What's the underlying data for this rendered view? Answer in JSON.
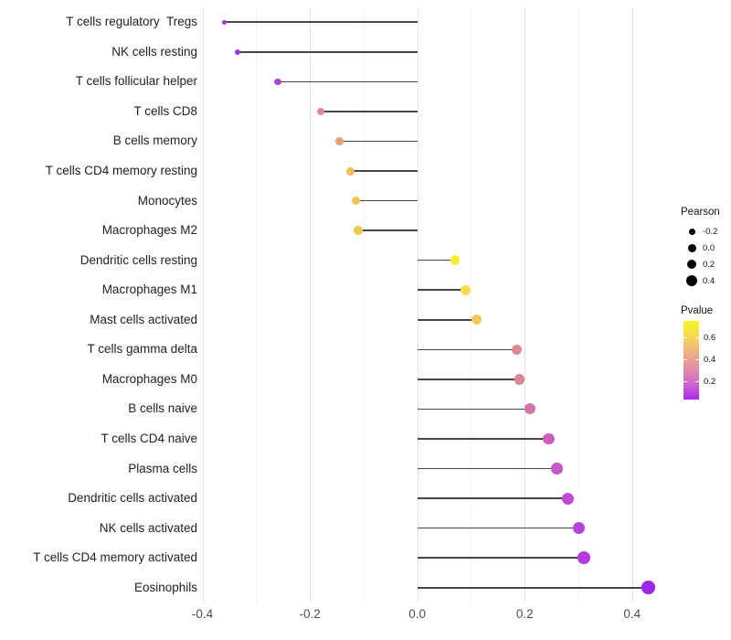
{
  "chart_data": {
    "type": "scatter",
    "subtype": "lollipop",
    "title": "",
    "xlabel": "",
    "ylabel": "",
    "grid": true,
    "xlim": [
      -0.4035,
      0.4735
    ],
    "x_major_ticks": [
      -0.4,
      -0.2,
      0.0,
      0.2,
      0.4
    ],
    "x_major_tick_labels": [
      "-0.4",
      "-0.2",
      "0.0",
      "0.2",
      "0.4"
    ],
    "x_minor_ticks": [
      -0.3,
      -0.1,
      0.1,
      0.3
    ],
    "baseline_x": 0.0,
    "points": [
      {
        "label": "T cells regulatory  Tregs",
        "pearson": -0.36,
        "pvalue": 0.1,
        "color": "#A138D9",
        "diameter": 5
      },
      {
        "label": "NK cells resting",
        "pearson": -0.335,
        "pvalue": 0.11,
        "color": "#A136DC",
        "diameter": 6
      },
      {
        "label": "T cells follicular helper",
        "pearson": -0.26,
        "pvalue": 0.18,
        "color": "#B044CD",
        "diameter": 7.5
      },
      {
        "label": "T cells CD8",
        "pearson": -0.18,
        "pvalue": 0.42,
        "color": "#DE8A92",
        "diameter": 8.5
      },
      {
        "label": "B cells memory",
        "pearson": -0.145,
        "pvalue": 0.5,
        "color": "#E5A173",
        "diameter": 8.5
      },
      {
        "label": "T cells CD4 memory resting",
        "pearson": -0.125,
        "pvalue": 0.57,
        "color": "#EEBC58",
        "diameter": 9
      },
      {
        "label": "Monocytes",
        "pearson": -0.115,
        "pvalue": 0.6,
        "color": "#F0C64F",
        "diameter": 9
      },
      {
        "label": "Macrophages M2",
        "pearson": -0.11,
        "pvalue": 0.61,
        "color": "#F1CA4C",
        "diameter": 9.5
      },
      {
        "label": "Dendritic cells resting",
        "pearson": 0.07,
        "pvalue": 0.72,
        "color": "#F8EC33",
        "diameter": 10.5
      },
      {
        "label": "Macrophages M1",
        "pearson": 0.09,
        "pvalue": 0.66,
        "color": "#F6DC4A",
        "diameter": 11
      },
      {
        "label": "Mast cells activated",
        "pearson": 0.11,
        "pvalue": 0.57,
        "color": "#F2CA5A",
        "diameter": 11
      },
      {
        "label": "T cells gamma delta",
        "pearson": 0.185,
        "pvalue": 0.41,
        "color": "#DC8796",
        "diameter": 11.5
      },
      {
        "label": "Macrophages M0",
        "pearson": 0.19,
        "pvalue": 0.4,
        "color": "#DB8598",
        "diameter": 11.5
      },
      {
        "label": "B cells naive",
        "pearson": 0.21,
        "pvalue": 0.3,
        "color": "#D476AC",
        "diameter": 12
      },
      {
        "label": "T cells CD4 naive",
        "pearson": 0.245,
        "pvalue": 0.24,
        "color": "#CB5FC0",
        "diameter": 12.5
      },
      {
        "label": "Plasma cells",
        "pearson": 0.26,
        "pvalue": 0.21,
        "color": "#C658CB",
        "diameter": 12.5
      },
      {
        "label": "Dendritic cells activated",
        "pearson": 0.28,
        "pvalue": 0.17,
        "color": "#BD4BD5",
        "diameter": 13
      },
      {
        "label": "NK cells activated",
        "pearson": 0.3,
        "pvalue": 0.14,
        "color": "#B541DA",
        "diameter": 13
      },
      {
        "label": "T cells CD4 memory activated",
        "pearson": 0.31,
        "pvalue": 0.13,
        "color": "#B33CDD",
        "diameter": 13.5
      },
      {
        "label": "Eosinophils",
        "pearson": 0.43,
        "pvalue": 0.03,
        "color": "#9D28E9",
        "diameter": 14.5
      }
    ],
    "legend": {
      "size_legend": {
        "title": "Pearson",
        "entries": [
          {
            "label": "-0.2",
            "diameter": 7
          },
          {
            "label": "0.0",
            "diameter": 9
          },
          {
            "label": "0.2",
            "diameter": 10.5
          },
          {
            "label": "0.4",
            "diameter": 12
          }
        ],
        "dot_color": "#000000"
      },
      "color_legend": {
        "title": "Pvalue",
        "range": [
          0.033,
          0.747
        ],
        "tick_labels": [
          "0.6",
          "0.4",
          "0.2"
        ],
        "tick_values": [
          0.6,
          0.4,
          0.2
        ],
        "gradient_top_to_bottom": [
          "#FBF524",
          "#F4DE4D",
          "#EFBD77",
          "#E99F93",
          "#DC82B4",
          "#C95ED8",
          "#A42BEF"
        ]
      },
      "position": "right"
    },
    "colors": {
      "grid_major": "#E4E4E4",
      "grid_minor": "#F2F2F2",
      "stem": "#454545",
      "axis_text": "#4d4d4d",
      "y_label_text": "#1f1f1f",
      "background": "#ffffff"
    }
  }
}
